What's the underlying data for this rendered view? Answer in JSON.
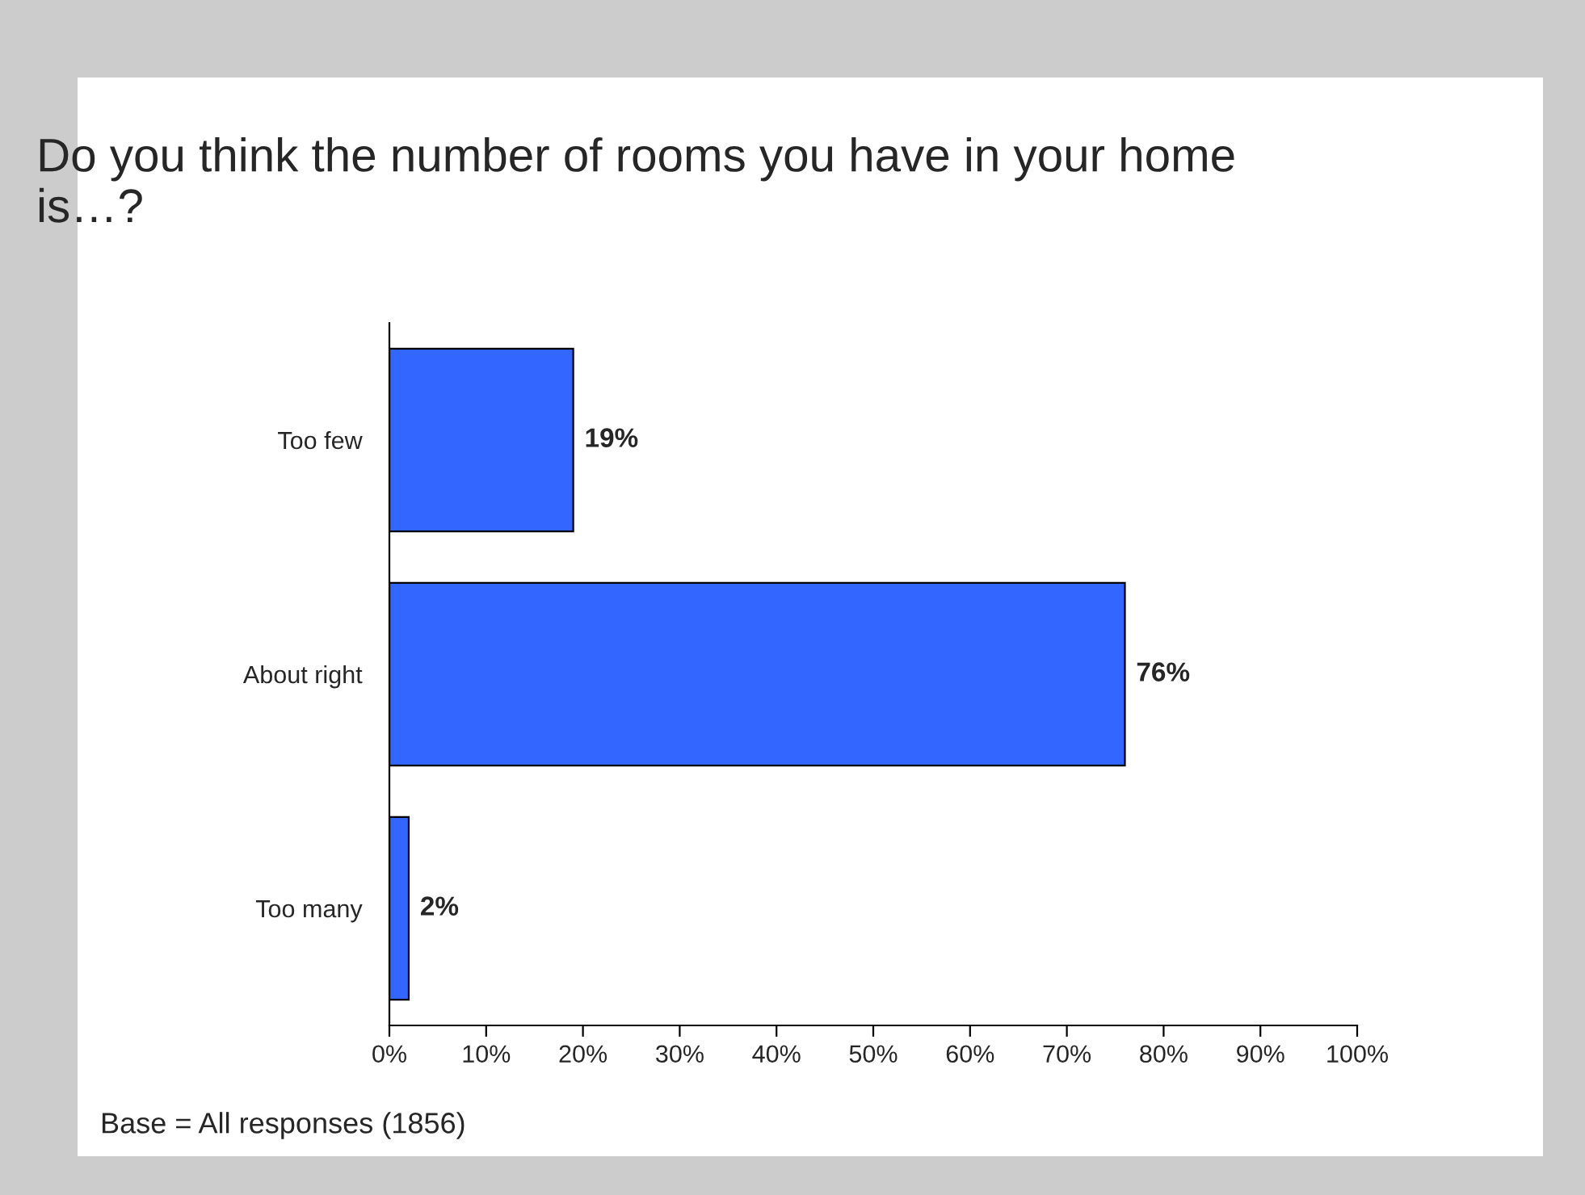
{
  "chart_data": {
    "type": "bar",
    "orientation": "horizontal",
    "title": "Do you think the number of rooms you have in your home is…?",
    "categories": [
      "Too few",
      "About right",
      "Too many"
    ],
    "values": [
      19,
      76,
      2
    ],
    "value_labels": [
      "19%",
      "76%",
      "2%"
    ],
    "color": "#3366ff",
    "xlim": [
      0,
      100
    ],
    "xticks": [
      {
        "value": 0,
        "label": "0%"
      },
      {
        "value": 10,
        "label": "10%"
      },
      {
        "value": 20,
        "label": "20%"
      },
      {
        "value": 30,
        "label": "30%"
      },
      {
        "value": 40,
        "label": "40%"
      },
      {
        "value": 50,
        "label": "50%"
      },
      {
        "value": 60,
        "label": "60%"
      },
      {
        "value": 70,
        "label": "70%"
      },
      {
        "value": 80,
        "label": "80%"
      },
      {
        "value": 90,
        "label": "90%"
      },
      {
        "value": 100,
        "label": "100%"
      }
    ],
    "grid": false,
    "legend": false,
    "annotations": [
      "Base = All responses (1856)"
    ]
  }
}
